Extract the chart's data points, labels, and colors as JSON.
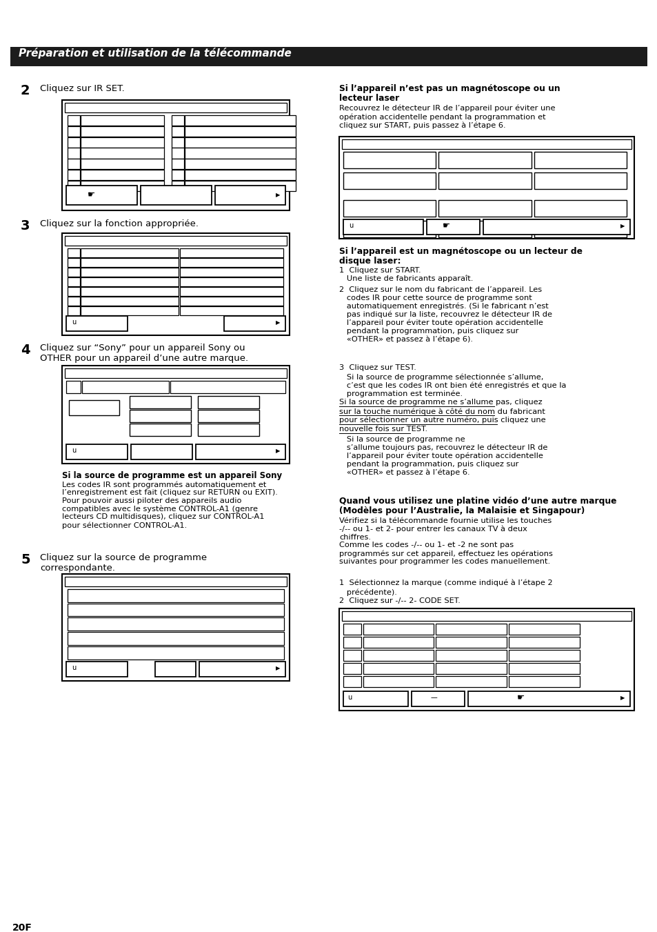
{
  "bg": "#ffffff",
  "title_bg": "#1c1c1c",
  "title": "Préparation et utilisation de la télécommande",
  "page_num": "20F",
  "step2": "Cliquez sur IR SET.",
  "step3": "Cliquez sur la fonction appropriée.",
  "step4a": "Cliquez sur “Sony” pour un appareil Sony ou",
  "step4b": "OTHER pour un appareil d’une autre marque.",
  "sony_bold": "Si la source de programme est un appareil Sony",
  "sony_body": "Les codes IR sont programmés automatiquement et\nl’enregistrement est fait (cliquez sur RETURN ou EXIT).\nPour pouvoir aussi piloter des appareils audio\ncompatibles avec le système CONTROL-A1 (genre\nlecteurs CD multidisques), cliquez sur CONTROL-A1\npour sélectionner CONTROL-A1.",
  "step5a": "Cliquez sur la source de programme",
  "step5b": "correspondante.",
  "rb1a": "Si l’appareil n’est pas un magnétoscope ou un",
  "rb1b": "lecteur laser",
  "rt1": "Recouvrez le détecteur IR de l’appareil pour éviter une\nopération accidentelle pendant la programmation et\ncliquez sur START, puis passez à l’étape 6.",
  "rb2a": "Si l’appareil est un magnétoscope ou un lecteur de",
  "rb2b": "disque laser:",
  "rn1": "1  Cliquez sur START.\n   Une liste de fabricants apparaît.",
  "rn2": "2  Cliquez sur le nom du fabricant de l’appareil. Les\n   codes IR pour cette source de programme sont\n   automatiquement enregistrés. (Si le fabricant n’est\n   pas indiqué sur la liste, recouvrez le détecteur IR de\n   l’appareil pour éviter toute opération accidentelle\n   pendant la programmation, puis cliquez sur\n   «OTHER» et passez à l’étape 6).",
  "rn3a": "3  Cliquez sur TEST.",
  "rn3b": "   Si la source de programme sélectionnée s’allume,\n   c’est que les codes IR ont bien été enregistrés et que la\n   programmation est terminée.",
  "rn3c_ul": "   Si la source de programme ne s’allume pas, cliquez\n   sur la touche numérique à côté du nom du fabricant\n   pour sélectionner un autre numéro, puis cliquez une\n   nouvelle fois sur TEST.",
  "rn3d": "   Si la source de programme ne\n   s’allume toujours pas, recouvrez le détecteur IR de\n   l’appareil pour éviter toute opération accidentelle\n   pendant la programmation, puis cliquez sur\n   «OTHER» et passez à l’étape 6.",
  "rb3a": "Quand vous utilisez une platine vidéo d’une autre marque",
  "rb3b": "(Modèles pour l’Australie, la Malaisie et Singapour)",
  "rt3": "Vérifiez si la télécommande fournie utilise les touches\n-/-- ou 1- et 2- pour entrer les canaux TV à deux\nchiffres.\nComme les codes -/-- ou 1- et -2 ne sont pas\nprogrammés sur cet appareil, effectuez les opérations\nsuivantes pour programmer les codes manuellement.",
  "rl3a": "1  Sélectionnez la marque (comme indiqué à l’étape 2",
  "rl3b": "   précédente).",
  "rl3c": "2  Cliquez sur -/-- 2- CODE SET."
}
